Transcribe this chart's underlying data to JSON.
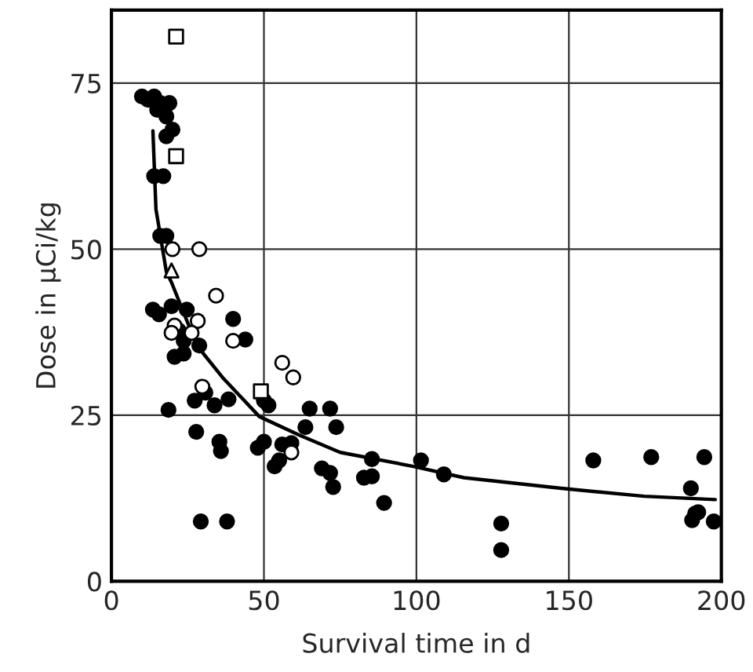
{
  "chart_data": {
    "type": "scatter",
    "xlabel": "Survival time in d",
    "ylabel": "Dose in μCi/kg",
    "xlim": [
      0,
      200
    ],
    "ylim": [
      0,
      86
    ],
    "xticks": [
      0,
      50,
      100,
      150,
      200
    ],
    "yticks": [
      0,
      25,
      50,
      75
    ],
    "grid": true,
    "legend": false,
    "series": [
      {
        "marker": "circle",
        "color": "#000000",
        "x": [
          10,
          12,
          14,
          15,
          16,
          18,
          19,
          20,
          18,
          14,
          17,
          16,
          18,
          13.6,
          15.6,
          19.7,
          24.7,
          22,
          23.7,
          20.7,
          23.7,
          28.8,
          39.9,
          43.9,
          27.3,
          30.8,
          33.8,
          38.4,
          18.7,
          27.8,
          35.4,
          35.9,
          29.3,
          37.9,
          50,
          51.5,
          48,
          50,
          56,
          59,
          53.5,
          55,
          65,
          71.7,
          63.6,
          73.7,
          69,
          71.7,
          72.7,
          82.8,
          85.4,
          85.4,
          89.4,
          101.5,
          109,
          127.8,
          127.8,
          158,
          177,
          194.4,
          190,
          191.4,
          192.4,
          190.4,
          197.5
        ],
        "values": [
          73,
          72.5,
          73,
          71,
          72,
          70,
          72,
          68,
          67,
          61,
          61,
          52,
          52,
          40.9,
          40.2,
          41.4,
          40.9,
          37.8,
          36.2,
          33.8,
          34.3,
          35.5,
          39.5,
          36.4,
          27.2,
          28.4,
          26.5,
          27.4,
          25.8,
          22.5,
          21,
          19.6,
          9,
          9,
          27.2,
          26.5,
          20.1,
          21,
          20.6,
          20.8,
          17.3,
          18.2,
          26,
          26,
          23.2,
          23.2,
          17,
          16.3,
          14.2,
          15.6,
          15.8,
          18.4,
          11.8,
          18.2,
          16.1,
          8.7,
          4.7,
          18.2,
          18.7,
          18.7,
          14,
          10.2,
          10.4,
          9.2,
          9
        ]
      },
      {
        "marker": "circle",
        "color": "#000000",
        "x": [
          20,
          28.8,
          34.3,
          28.3,
          20.7,
          26.3,
          19.7,
          39.9,
          56,
          59.6,
          29.8,
          59
        ],
        "values": [
          50,
          50,
          43,
          39.2,
          38.5,
          37.4,
          37.4,
          36.2,
          32.9,
          30.7,
          29.3,
          19.4
        ]
      },
      {
        "marker": "square",
        "color": "#000000",
        "x": [
          21.2,
          21.2,
          49
        ],
        "values": [
          82,
          64,
          28.6
        ]
      },
      {
        "marker": "triangle",
        "color": "#000000",
        "x": [
          19.7
        ],
        "values": [
          46.8
        ]
      },
      {
        "type": "line",
        "marker": "none",
        "color": "#000000",
        "x": [
          13.6,
          14.6,
          18,
          19.7,
          28,
          36.4,
          48.5,
          61.6,
          75,
          99,
          115.6,
          147.5,
          174.7,
          198
        ],
        "values": [
          67.8,
          56,
          46.6,
          45,
          35.5,
          30.7,
          24.8,
          22,
          19.4,
          17.3,
          15.6,
          14,
          12.8,
          12.3
        ]
      }
    ]
  }
}
